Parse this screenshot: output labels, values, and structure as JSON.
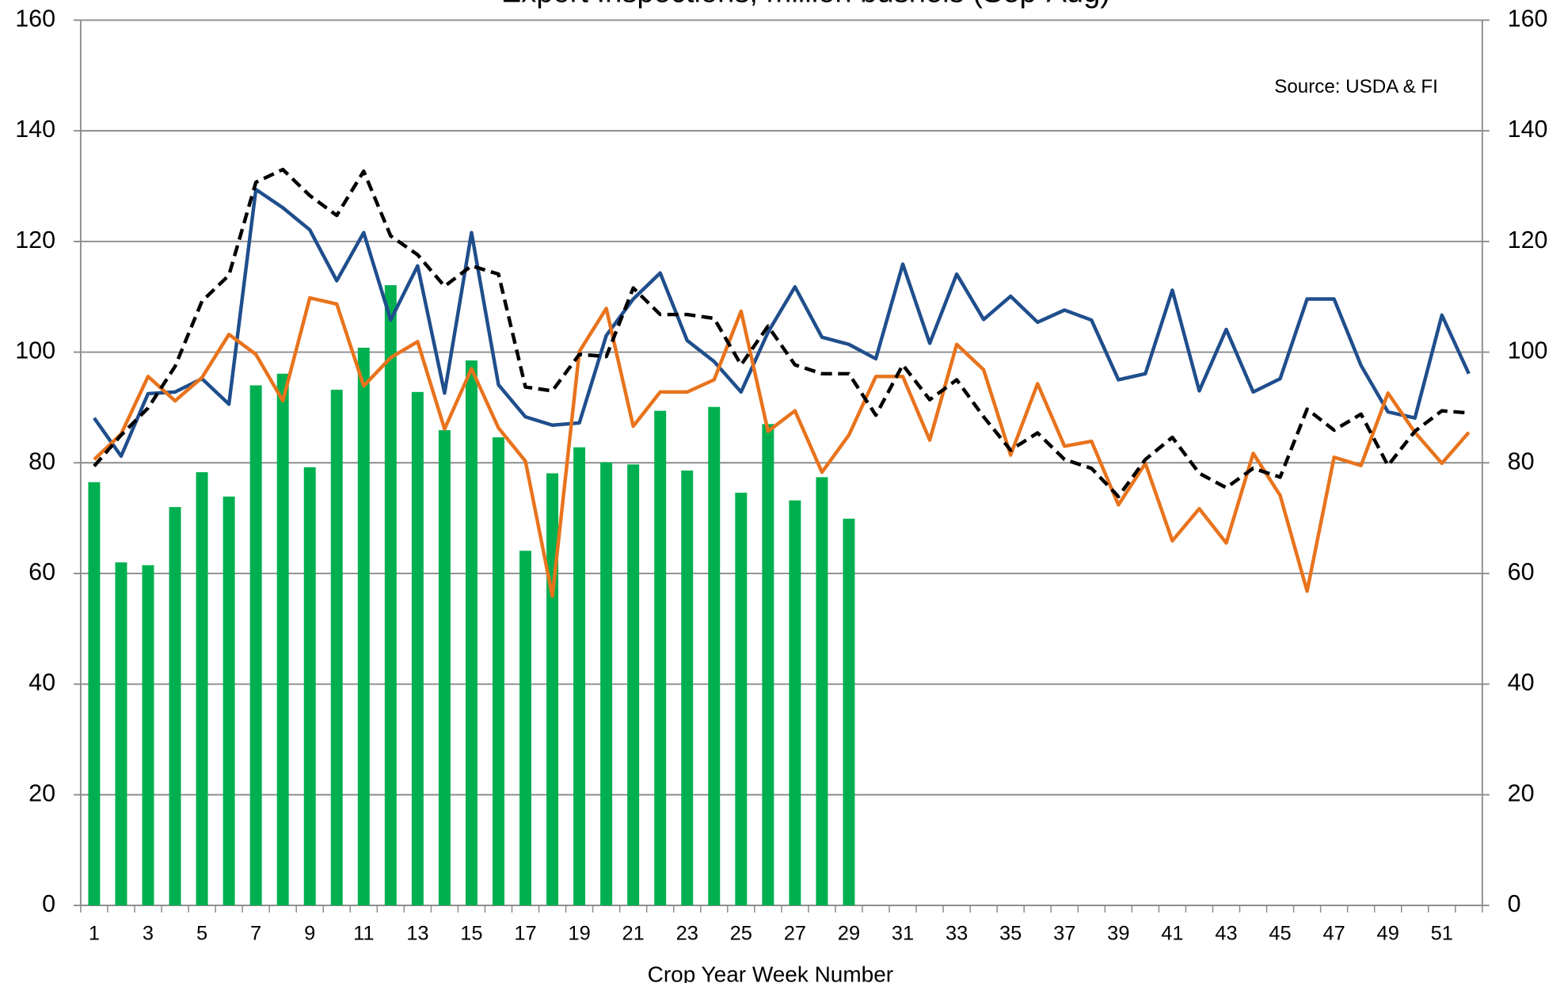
{
  "chart_data": {
    "type": "combo",
    "title": "Export Inspections, million bushels (Sep-Aug)",
    "x_label": "Crop Year Week Number",
    "annotation": "Source: USDA & FI",
    "categories": [
      1,
      null,
      3,
      null,
      5,
      null,
      7,
      null,
      9,
      null,
      11,
      null,
      13,
      null,
      15,
      null,
      17,
      null,
      19,
      null,
      21,
      null,
      23,
      null,
      25,
      null,
      27,
      null,
      29,
      null,
      31,
      null,
      33,
      null,
      35,
      null,
      37,
      null,
      39,
      null,
      41,
      null,
      43,
      null,
      45,
      null,
      47,
      null,
      49,
      null,
      51,
      null
    ],
    "ylim": [
      0,
      160
    ],
    "yticks": [
      0,
      20,
      40,
      60,
      80,
      100,
      120,
      140,
      160
    ],
    "y2lim": [
      0,
      160
    ],
    "y2ticks": [
      0,
      20,
      40,
      60,
      80,
      100,
      120,
      140,
      160
    ],
    "grid": true,
    "series": [
      {
        "type": "bar",
        "color": "#00b050",
        "values": [
          76.5,
          62,
          61.5,
          72,
          78.3,
          73.9,
          94,
          96.1,
          79.2,
          93.2,
          100.8,
          112.1,
          92.8,
          85.9,
          98.5,
          84.6,
          64.1,
          78.1,
          82.8,
          80.1,
          79.7,
          89.4,
          78.6,
          90.1,
          74.6,
          87,
          73.2,
          77.4,
          69.9,
          null,
          null,
          null,
          null,
          null,
          null,
          null,
          null,
          null,
          null,
          null,
          null,
          null,
          null,
          null,
          null,
          null,
          null,
          null,
          null,
          null,
          null,
          null
        ]
      },
      {
        "type": "line",
        "color": "#1f4e8c",
        "line_style": "solid",
        "values": [
          88.1,
          81.2,
          92.5,
          92.8,
          95.2,
          90.6,
          129.4,
          126.1,
          122.1,
          112.9,
          121.6,
          105.8,
          115.6,
          92.6,
          121.6,
          94.1,
          88.3,
          86.8,
          87.2,
          103,
          109.6,
          114.3,
          102.1,
          98.3,
          92.8,
          103.6,
          111.8,
          102.7,
          101.4,
          98.8,
          115.9,
          101.6,
          114.1,
          105.9,
          110.1,
          105.4,
          107.6,
          105.8,
          95,
          96.1,
          111.2,
          93,
          104.1,
          92.8,
          95.2,
          109.6,
          109.6,
          97.6,
          89.2,
          88.1,
          106.7,
          96.1
        ]
      },
      {
        "type": "line",
        "color": "#e8731c",
        "line_style": "solid",
        "values": [
          80.6,
          85.2,
          95.6,
          91.2,
          95.4,
          103.2,
          99.6,
          91.2,
          109.8,
          108.7,
          93.9,
          99,
          101.9,
          86.1,
          97,
          86.3,
          80.3,
          55.9,
          100.1,
          107.9,
          86.6,
          92.8,
          92.8,
          95,
          107.4,
          85.7,
          89.4,
          78.3,
          85,
          95.6,
          95.6,
          84.1,
          101.4,
          96.8,
          81.4,
          94.3,
          83,
          83.9,
          72.4,
          79.9,
          65.9,
          71.7,
          65.5,
          81.7,
          74.1,
          56.8,
          81,
          79.5,
          92.6,
          85.5,
          79.9,
          85.5
        ]
      },
      {
        "type": "line",
        "color": "#000000",
        "line_style": "dashed",
        "values": [
          79.4,
          85,
          89.9,
          97.4,
          109.2,
          113.9,
          130.7,
          133,
          128.3,
          124.7,
          132.7,
          121,
          117.6,
          111.9,
          115.6,
          114.1,
          93.7,
          93,
          99.6,
          99.2,
          111.6,
          106.8,
          106.8,
          106.1,
          97.7,
          104.7,
          97.7,
          96.1,
          96.1,
          88.6,
          97.7,
          91.4,
          95,
          88.3,
          82.3,
          85.4,
          80.6,
          79,
          73.9,
          80.6,
          84.6,
          78.1,
          75.5,
          79,
          77.4,
          89.7,
          85.9,
          88.8,
          79.5,
          85.7,
          89.4,
          89
        ]
      }
    ]
  }
}
